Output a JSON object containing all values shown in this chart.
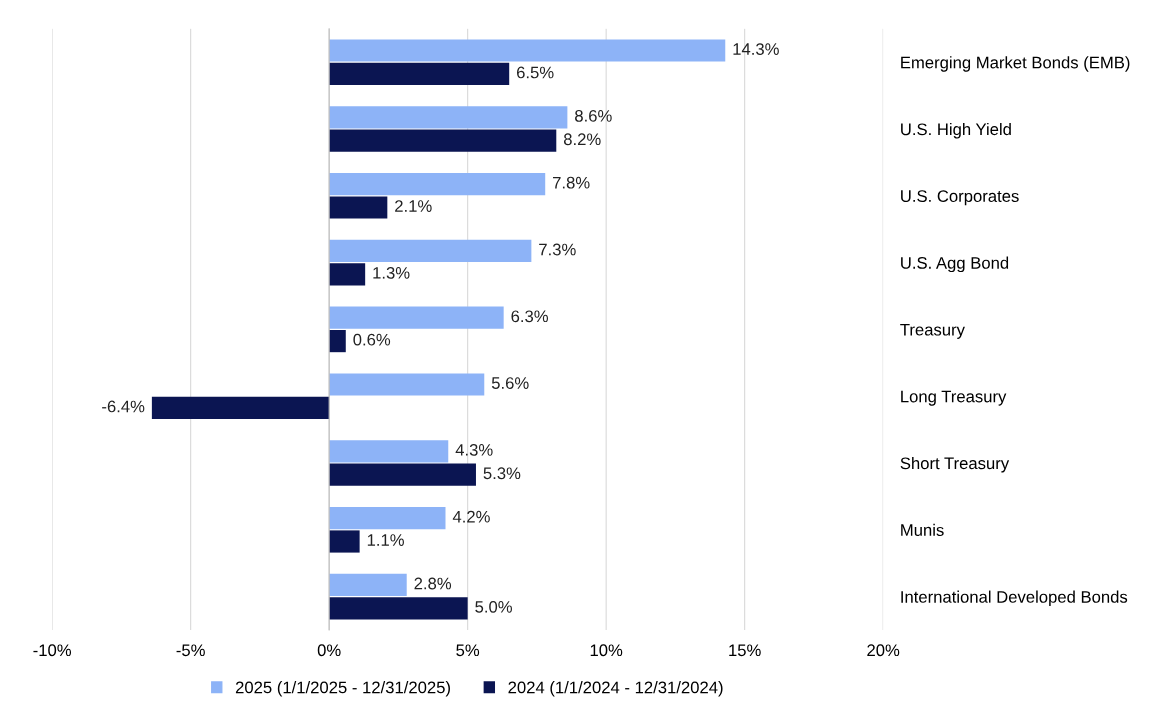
{
  "chart_data": {
    "type": "bar",
    "orientation": "horizontal",
    "categories": [
      "Emerging Market Bonds (EMB)",
      "U.S. High Yield",
      "U.S. Corporates",
      "U.S. Agg Bond",
      "Treasury",
      "Long Treasury",
      "Short Treasury",
      "Munis",
      "International Developed Bonds"
    ],
    "series": [
      {
        "name": "2025 (1/1/2025 - 12/31/2025)",
        "color": "#8db3f7",
        "values": [
          14.3,
          8.6,
          7.8,
          7.3,
          6.3,
          5.6,
          4.3,
          4.2,
          2.8
        ],
        "value_labels": [
          "14.3%",
          "8.6%",
          "7.8%",
          "7.3%",
          "6.3%",
          "5.6%",
          "4.3%",
          "4.2%",
          "2.8%"
        ]
      },
      {
        "name": "2024 (1/1/2024 - 12/31/2024)",
        "color": "#0b1552",
        "values": [
          6.5,
          8.2,
          2.1,
          1.3,
          0.6,
          -6.4,
          5.3,
          1.1,
          5.0
        ],
        "value_labels": [
          "6.5%",
          "8.2%",
          "2.1%",
          "1.3%",
          "0.6%",
          "-6.4%",
          "5.3%",
          "1.1%",
          "5.0%"
        ]
      }
    ],
    "xlim": [
      -10,
      20
    ],
    "xticks": [
      {
        "value": -10,
        "label": "-10%"
      },
      {
        "value": -5,
        "label": "-5%"
      },
      {
        "value": 0,
        "label": "0%"
      },
      {
        "value": 5,
        "label": "5%"
      },
      {
        "value": 10,
        "label": "10%"
      },
      {
        "value": 15,
        "label": "15%"
      },
      {
        "value": 20,
        "label": "20%"
      }
    ],
    "grid": "x",
    "legend": "bottom"
  }
}
